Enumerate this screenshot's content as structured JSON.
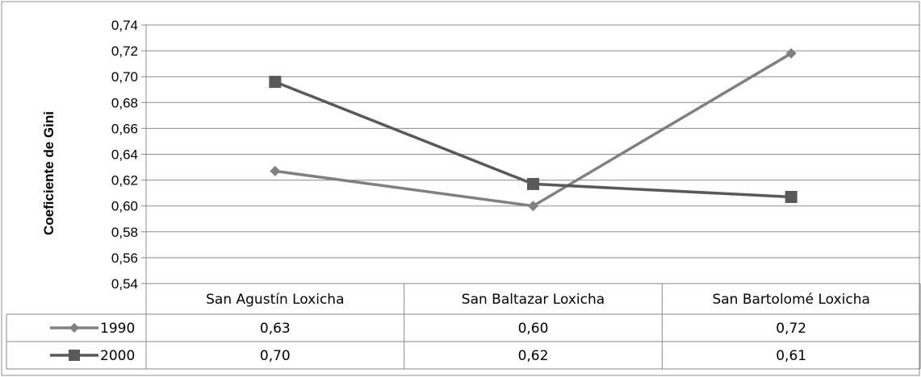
{
  "chart_data": {
    "type": "line",
    "ylabel": "Coeficiente de Gini",
    "ylim": [
      0.54,
      0.74
    ],
    "ytick_step": 0.02,
    "ytick_labels": [
      "0,54",
      "0,56",
      "0,58",
      "0,60",
      "0,62",
      "0,64",
      "0,66",
      "0,68",
      "0,70",
      "0,72",
      "0,74"
    ],
    "grid": true,
    "legend": "data-table",
    "categories": [
      "San Agustín Loxicha",
      "San Baltazar Loxicha",
      "San Bartolomé Loxicha"
    ],
    "series": [
      {
        "name": "1990",
        "marker": "diamond",
        "color": "#808080",
        "values": [
          0.627,
          0.6,
          0.718
        ],
        "table_labels": [
          "0,63",
          "0,60",
          "0,72"
        ]
      },
      {
        "name": "2000",
        "marker": "square",
        "color": "#595959",
        "values": [
          0.696,
          0.617,
          0.607
        ],
        "table_labels": [
          "0,70",
          "0,62",
          "0,61"
        ]
      }
    ]
  }
}
